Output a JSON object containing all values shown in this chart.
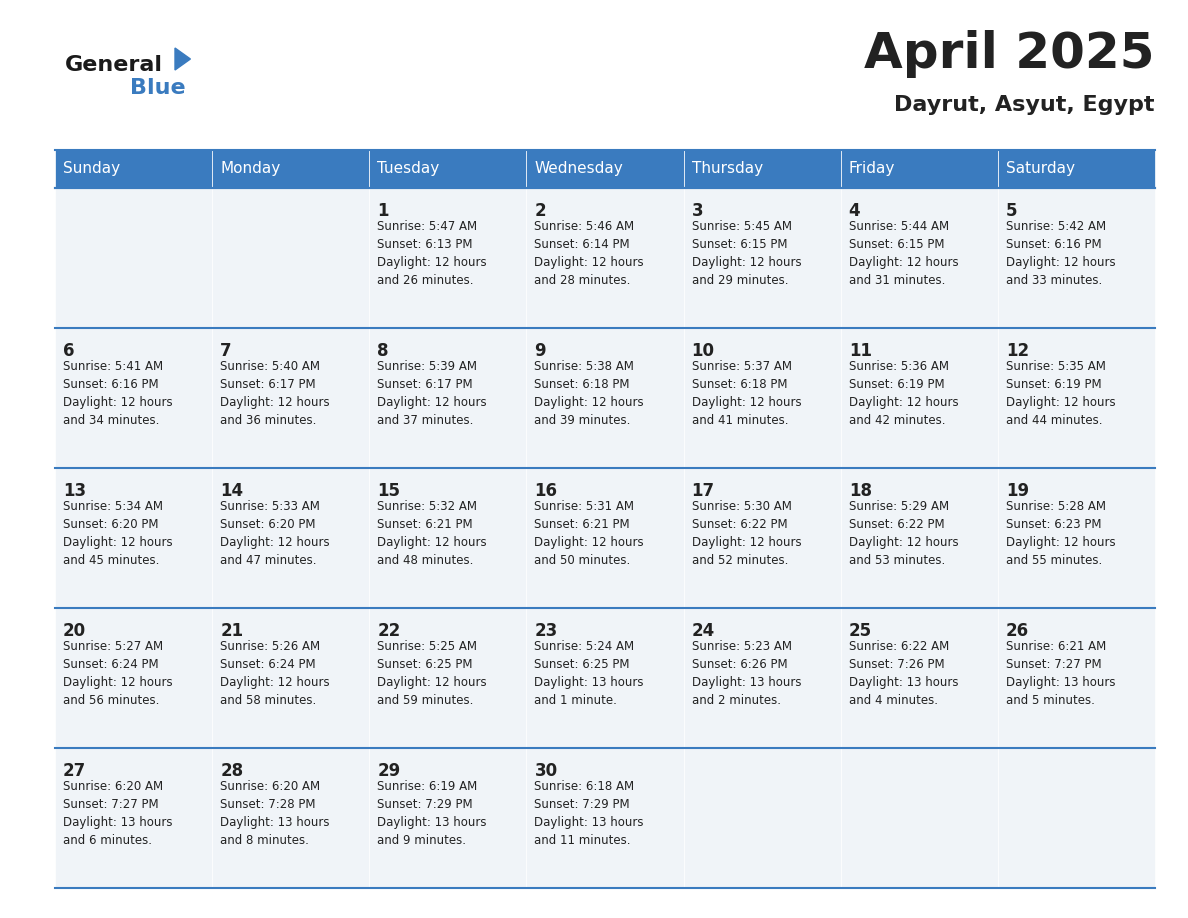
{
  "title": "April 2025",
  "subtitle": "Dayrut, Asyut, Egypt",
  "header_color": "#3a7bbf",
  "header_text_color": "#ffffff",
  "cell_bg_color": "#f0f4f8",
  "alt_cell_bg_color": "#ffffff",
  "border_color": "#3a7bbf",
  "text_color": "#222222",
  "days_of_week": [
    "Sunday",
    "Monday",
    "Tuesday",
    "Wednesday",
    "Thursday",
    "Friday",
    "Saturday"
  ],
  "weeks": [
    [
      {
        "day": "",
        "info": ""
      },
      {
        "day": "",
        "info": ""
      },
      {
        "day": "1",
        "info": "Sunrise: 5:47 AM\nSunset: 6:13 PM\nDaylight: 12 hours\nand 26 minutes."
      },
      {
        "day": "2",
        "info": "Sunrise: 5:46 AM\nSunset: 6:14 PM\nDaylight: 12 hours\nand 28 minutes."
      },
      {
        "day": "3",
        "info": "Sunrise: 5:45 AM\nSunset: 6:15 PM\nDaylight: 12 hours\nand 29 minutes."
      },
      {
        "day": "4",
        "info": "Sunrise: 5:44 AM\nSunset: 6:15 PM\nDaylight: 12 hours\nand 31 minutes."
      },
      {
        "day": "5",
        "info": "Sunrise: 5:42 AM\nSunset: 6:16 PM\nDaylight: 12 hours\nand 33 minutes."
      }
    ],
    [
      {
        "day": "6",
        "info": "Sunrise: 5:41 AM\nSunset: 6:16 PM\nDaylight: 12 hours\nand 34 minutes."
      },
      {
        "day": "7",
        "info": "Sunrise: 5:40 AM\nSunset: 6:17 PM\nDaylight: 12 hours\nand 36 minutes."
      },
      {
        "day": "8",
        "info": "Sunrise: 5:39 AM\nSunset: 6:17 PM\nDaylight: 12 hours\nand 37 minutes."
      },
      {
        "day": "9",
        "info": "Sunrise: 5:38 AM\nSunset: 6:18 PM\nDaylight: 12 hours\nand 39 minutes."
      },
      {
        "day": "10",
        "info": "Sunrise: 5:37 AM\nSunset: 6:18 PM\nDaylight: 12 hours\nand 41 minutes."
      },
      {
        "day": "11",
        "info": "Sunrise: 5:36 AM\nSunset: 6:19 PM\nDaylight: 12 hours\nand 42 minutes."
      },
      {
        "day": "12",
        "info": "Sunrise: 5:35 AM\nSunset: 6:19 PM\nDaylight: 12 hours\nand 44 minutes."
      }
    ],
    [
      {
        "day": "13",
        "info": "Sunrise: 5:34 AM\nSunset: 6:20 PM\nDaylight: 12 hours\nand 45 minutes."
      },
      {
        "day": "14",
        "info": "Sunrise: 5:33 AM\nSunset: 6:20 PM\nDaylight: 12 hours\nand 47 minutes."
      },
      {
        "day": "15",
        "info": "Sunrise: 5:32 AM\nSunset: 6:21 PM\nDaylight: 12 hours\nand 48 minutes."
      },
      {
        "day": "16",
        "info": "Sunrise: 5:31 AM\nSunset: 6:21 PM\nDaylight: 12 hours\nand 50 minutes."
      },
      {
        "day": "17",
        "info": "Sunrise: 5:30 AM\nSunset: 6:22 PM\nDaylight: 12 hours\nand 52 minutes."
      },
      {
        "day": "18",
        "info": "Sunrise: 5:29 AM\nSunset: 6:22 PM\nDaylight: 12 hours\nand 53 minutes."
      },
      {
        "day": "19",
        "info": "Sunrise: 5:28 AM\nSunset: 6:23 PM\nDaylight: 12 hours\nand 55 minutes."
      }
    ],
    [
      {
        "day": "20",
        "info": "Sunrise: 5:27 AM\nSunset: 6:24 PM\nDaylight: 12 hours\nand 56 minutes."
      },
      {
        "day": "21",
        "info": "Sunrise: 5:26 AM\nSunset: 6:24 PM\nDaylight: 12 hours\nand 58 minutes."
      },
      {
        "day": "22",
        "info": "Sunrise: 5:25 AM\nSunset: 6:25 PM\nDaylight: 12 hours\nand 59 minutes."
      },
      {
        "day": "23",
        "info": "Sunrise: 5:24 AM\nSunset: 6:25 PM\nDaylight: 13 hours\nand 1 minute."
      },
      {
        "day": "24",
        "info": "Sunrise: 5:23 AM\nSunset: 6:26 PM\nDaylight: 13 hours\nand 2 minutes."
      },
      {
        "day": "25",
        "info": "Sunrise: 6:22 AM\nSunset: 7:26 PM\nDaylight: 13 hours\nand 4 minutes."
      },
      {
        "day": "26",
        "info": "Sunrise: 6:21 AM\nSunset: 7:27 PM\nDaylight: 13 hours\nand 5 minutes."
      }
    ],
    [
      {
        "day": "27",
        "info": "Sunrise: 6:20 AM\nSunset: 7:27 PM\nDaylight: 13 hours\nand 6 minutes."
      },
      {
        "day": "28",
        "info": "Sunrise: 6:20 AM\nSunset: 7:28 PM\nDaylight: 13 hours\nand 8 minutes."
      },
      {
        "day": "29",
        "info": "Sunrise: 6:19 AM\nSunset: 7:29 PM\nDaylight: 13 hours\nand 9 minutes."
      },
      {
        "day": "30",
        "info": "Sunrise: 6:18 AM\nSunset: 7:29 PM\nDaylight: 13 hours\nand 11 minutes."
      },
      {
        "day": "",
        "info": ""
      },
      {
        "day": "",
        "info": ""
      },
      {
        "day": "",
        "info": ""
      }
    ]
  ],
  "logo_text_general": "General",
  "logo_text_blue": "Blue",
  "logo_color_general": "#1a1a1a",
  "logo_color_blue": "#3a7bbf",
  "logo_triangle_color": "#3a7bbf"
}
